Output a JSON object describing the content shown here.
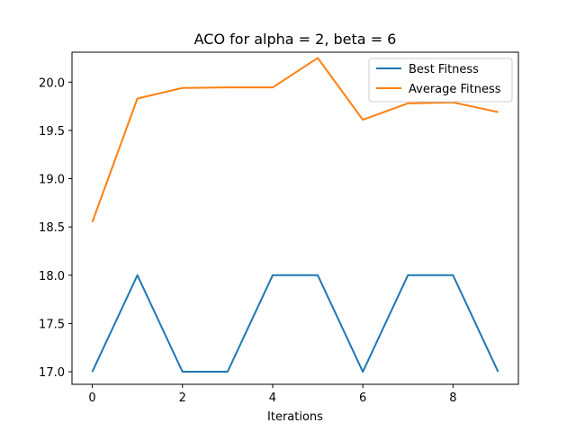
{
  "chart_data": {
    "type": "line",
    "title": "ACO for alpha = 2, beta = 6",
    "xlabel": "Iterations",
    "ylabel": "",
    "xlim": [
      -0.45,
      9.45
    ],
    "ylim": [
      16.87,
      20.31
    ],
    "x": [
      0,
      1,
      2,
      3,
      4,
      5,
      6,
      7,
      8,
      9
    ],
    "xticks": [
      0,
      2,
      4,
      6,
      8
    ],
    "yticks": [
      17.0,
      17.5,
      18.0,
      18.5,
      19.0,
      19.5,
      20.0
    ],
    "ytick_labels": [
      "17.0",
      "17.5",
      "18.0",
      "18.5",
      "19.0",
      "19.5",
      "20.0"
    ],
    "grid": false,
    "legend_position": "top-right",
    "series": [
      {
        "name": "Best Fitness",
        "color": "#1f77b4",
        "values": [
          17,
          18,
          17,
          17,
          18,
          18,
          17,
          18,
          18,
          17
        ]
      },
      {
        "name": "Average Fitness",
        "color": "#ff7f0e",
        "values": [
          18.55,
          19.83,
          19.94,
          19.945,
          19.945,
          20.25,
          19.61,
          19.78,
          19.79,
          19.69
        ]
      }
    ]
  }
}
